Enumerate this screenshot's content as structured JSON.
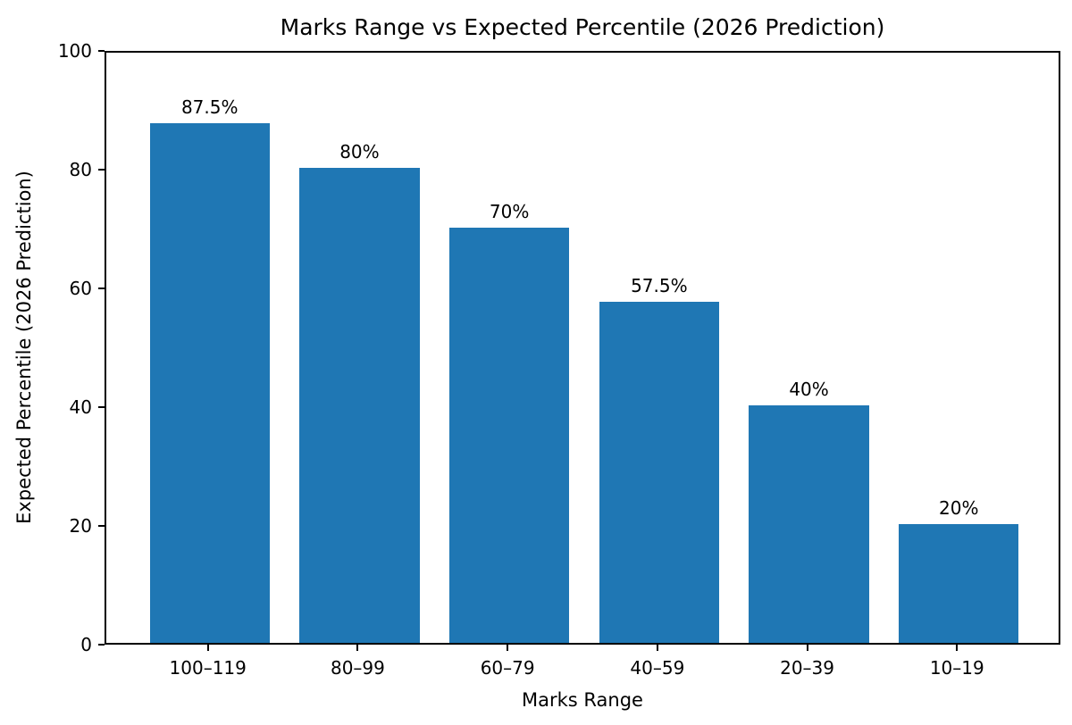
{
  "chart_data": {
    "type": "bar",
    "title": "Marks Range vs Expected Percentile (2026 Prediction)",
    "xlabel": "Marks Range",
    "ylabel": "Expected Percentile (2026 Prediction)",
    "categories": [
      "100–119",
      "80–99",
      "60–79",
      "40–59",
      "20–39",
      "10–19"
    ],
    "values": [
      87.5,
      80,
      70,
      57.5,
      40,
      20
    ],
    "bar_labels": [
      "87.5%",
      "80%",
      "70%",
      "57.5%",
      "40%",
      "20%"
    ],
    "yticks": [
      "0",
      "20",
      "40",
      "60",
      "80",
      "100"
    ],
    "ytick_values": [
      0,
      20,
      40,
      60,
      80,
      100
    ],
    "ylim": [
      0,
      100
    ],
    "bar_color": "#1f77b4",
    "grid": false,
    "legend_position": "none"
  }
}
